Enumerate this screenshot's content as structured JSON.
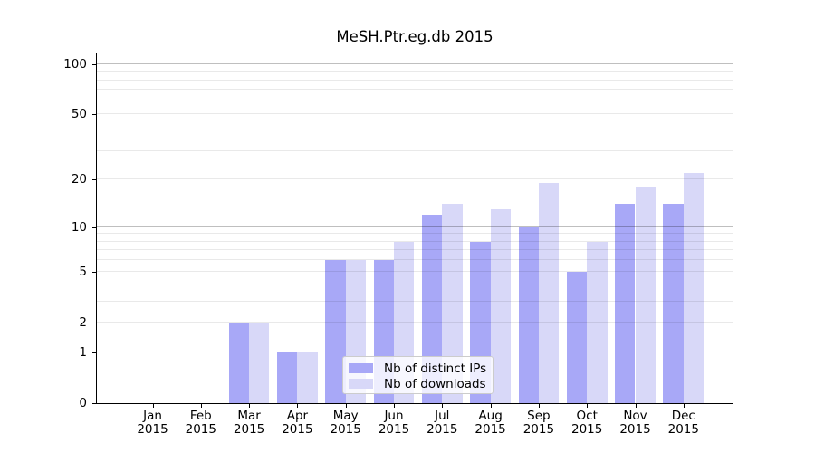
{
  "chart_data": {
    "type": "bar",
    "title": "MeSH.Ptr.eg.db 2015",
    "categories": [
      "Jan 2015",
      "Feb 2015",
      "Mar 2015",
      "Apr 2015",
      "May 2015",
      "Jun 2015",
      "Jul 2015",
      "Aug 2015",
      "Sep 2015",
      "Oct 2015",
      "Nov 2015",
      "Dec 2015"
    ],
    "series": [
      {
        "name": "Nb of distinct IPs",
        "color": "#a8a8f7",
        "values": [
          0,
          0,
          2,
          1,
          6,
          6,
          12,
          8,
          10,
          5,
          14,
          14
        ]
      },
      {
        "name": "Nb of downloads",
        "color": "#d8d8f8",
        "values": [
          0,
          0,
          2,
          1,
          6,
          8,
          14,
          13,
          19,
          8,
          18,
          22
        ]
      }
    ],
    "yscale": "log1p",
    "ylim": [
      0,
      115.7
    ],
    "yticks": [
      0,
      1,
      2,
      5,
      10,
      20,
      50,
      100
    ],
    "grid_light": [
      2,
      3,
      4,
      5,
      6,
      7,
      8,
      9,
      20,
      30,
      40,
      50,
      60,
      70,
      80,
      90
    ],
    "grid_dark": [
      1,
      10,
      100
    ],
    "grid": true,
    "legend_position": "lower center",
    "colors": {
      "grid_light": "rgba(0,0,0,0.085)",
      "grid_dark": "rgba(0,0,0,0.25)",
      "axis": "#000000",
      "background": "#ffffff"
    }
  }
}
